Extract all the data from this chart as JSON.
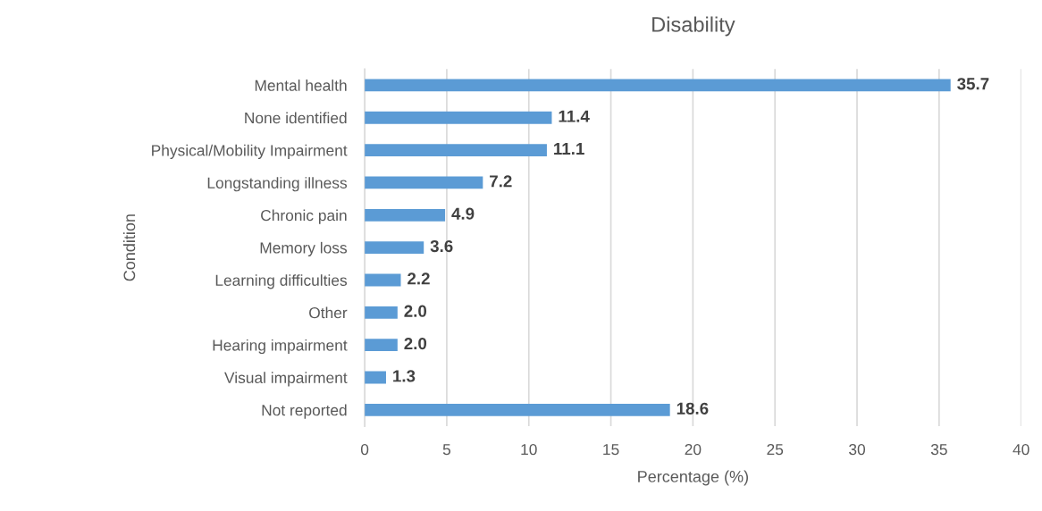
{
  "chart_data": {
    "type": "bar",
    "orientation": "horizontal",
    "title": "Disability",
    "xlabel": "Percentage (%)",
    "ylabel": "Condition",
    "categories": [
      "Mental health",
      "None identified",
      "Physical/Mobility Impairment",
      "Longstanding illness",
      "Chronic pain",
      "Memory loss",
      "Learning difficulties",
      "Other",
      "Hearing impairment",
      "Visual impairment",
      "Not reported"
    ],
    "values": [
      35.7,
      11.4,
      11.1,
      7.2,
      4.9,
      3.6,
      2.2,
      2.0,
      2.0,
      1.3,
      18.6
    ],
    "value_labels": [
      "35.7",
      "11.4",
      "11.1",
      "7.2",
      "4.9",
      "3.6",
      "2.2",
      "2.0",
      "2.0",
      "1.3",
      "18.6"
    ],
    "color": "#5b9bd5",
    "xlim": [
      0,
      40
    ],
    "xticks": [
      0,
      5,
      10,
      15,
      20,
      25,
      30,
      35,
      40
    ],
    "grid": "x"
  }
}
